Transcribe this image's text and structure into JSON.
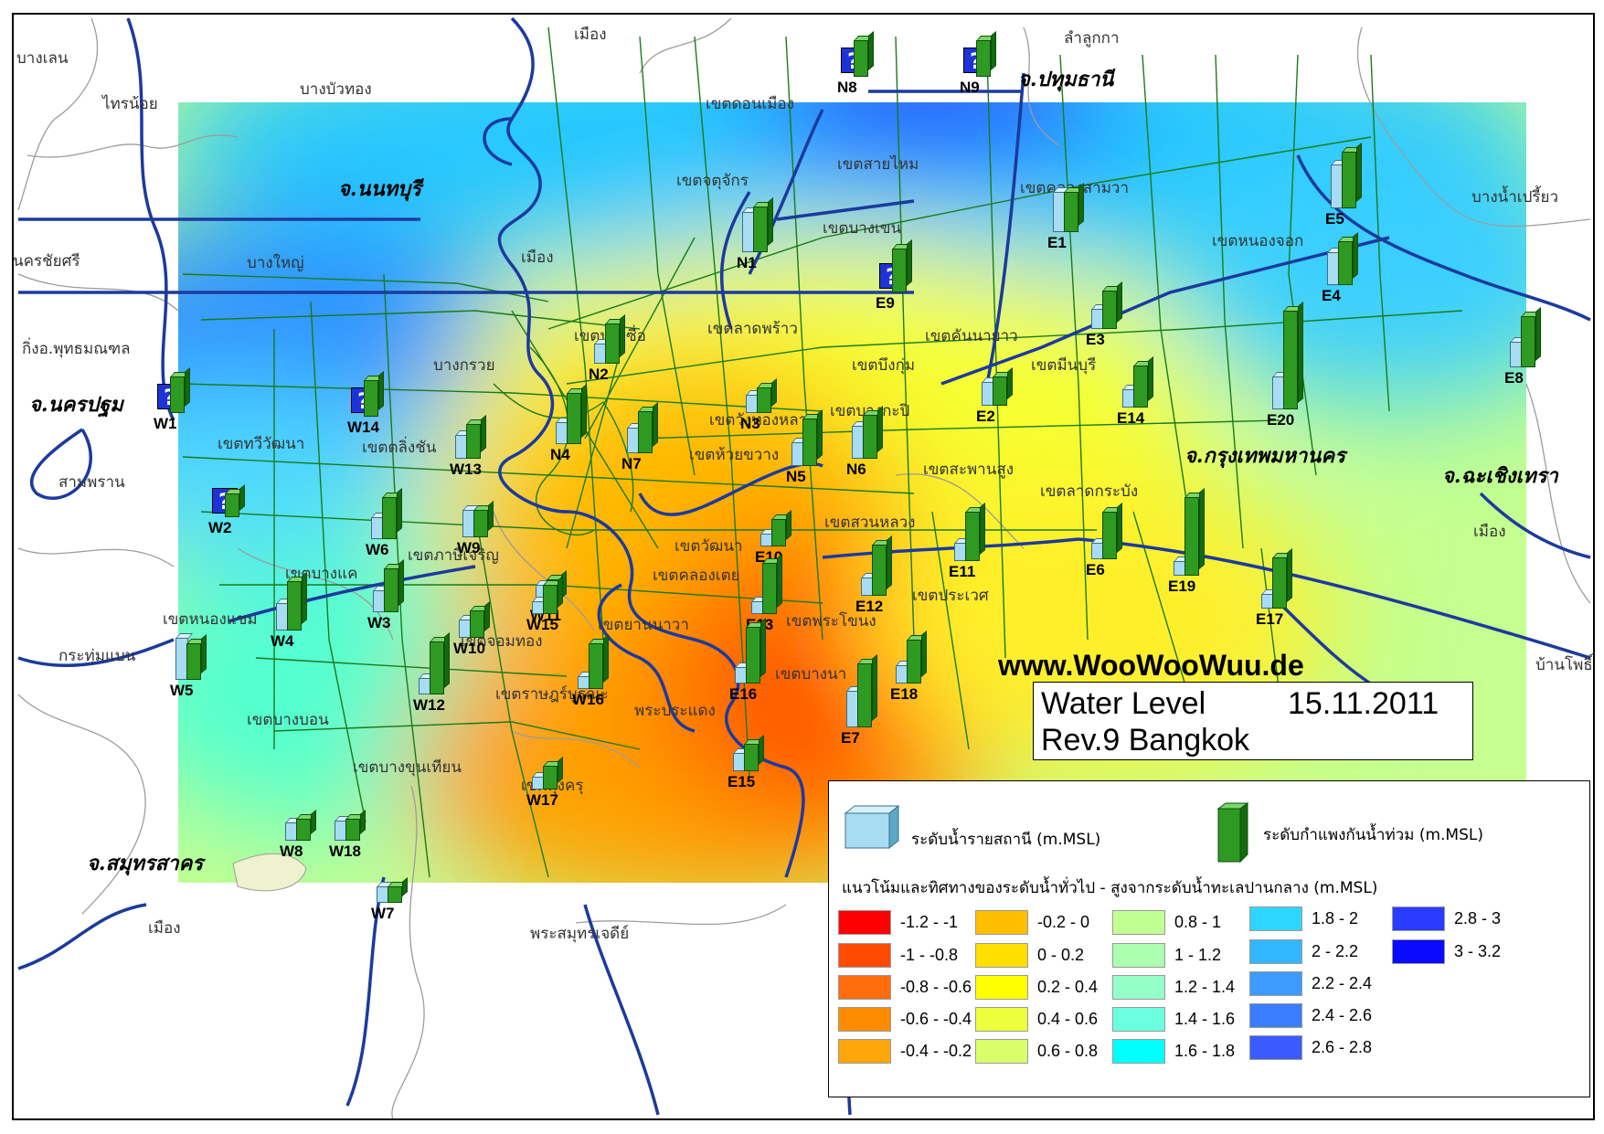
{
  "title": {
    "line1": "Water Level",
    "date": "15.11.2011",
    "line2": "Rev.9 Bangkok"
  },
  "website": "www.WooWooWuu.de",
  "provinces": [
    {
      "id": "nonthaburi",
      "label": "จ.นนทบุรี"
    },
    {
      "id": "pathum-thani",
      "label": "จ.ปทุมธานี"
    },
    {
      "id": "nakhon-pathom",
      "label": "จ.นครปฐม"
    },
    {
      "id": "bangkok",
      "label": "จ.กรุงเทพมหานคร"
    },
    {
      "id": "chachoengsao",
      "label": "จ.ฉะเชิงเทรา"
    },
    {
      "id": "samut-sakhon",
      "label": "จ.สมุทรสาคร"
    }
  ],
  "places": [
    {
      "id": "bang-len",
      "label": "บางเลน"
    },
    {
      "id": "sai-noi",
      "label": "ไทรน้อย"
    },
    {
      "id": "bang-bua-thong",
      "label": "บางบัวทอง"
    },
    {
      "id": "nakhon-chai-si",
      "label": "นครชัยศรี"
    },
    {
      "id": "bang-yai",
      "label": "บางใหญ่"
    },
    {
      "id": "phutthamonthon",
      "label": "กิ่งอ.พุทธมณฑล"
    },
    {
      "id": "bang-kruai",
      "label": "บางกรวย"
    },
    {
      "id": "sam-phran",
      "label": "สามพราน"
    },
    {
      "id": "krathum-baen",
      "label": "กระทุ่มแบน"
    },
    {
      "id": "lam-luk-ka",
      "label": "ลำลูกกา"
    },
    {
      "id": "bang-nam-priao",
      "label": "บางน้ำเปรี้ยว"
    },
    {
      "id": "ban-pho",
      "label": "บ้านโพธิ์"
    },
    {
      "id": "mueang-chachoengsao",
      "label": "เมือง"
    },
    {
      "id": "mueang-samut-sakhon",
      "label": "เมือง"
    },
    {
      "id": "phra-samut-chedi",
      "label": "พระสมุทรเจดีย์"
    },
    {
      "id": "mueang-nonthaburi",
      "label": "เมือง"
    },
    {
      "id": "mueang-pathum-thani",
      "label": "เมือง"
    },
    {
      "id": "don-mueang",
      "label": "เขตดอนเมือง"
    },
    {
      "id": "sai-mai",
      "label": "เขตสายไหม"
    },
    {
      "id": "khlong-sam-wa",
      "label": "เขตคลองสามวา"
    },
    {
      "id": "bang-khen",
      "label": "เขตบางเขน"
    },
    {
      "id": "nong-chok",
      "label": "เขตหนองจอก"
    },
    {
      "id": "khan-na-yao",
      "label": "เขตคันนายาว"
    },
    {
      "id": "bueng-kum",
      "label": "เขตบึงกุ่ม"
    },
    {
      "id": "min-buri",
      "label": "เขตมีนบุรี"
    },
    {
      "id": "saphan-sung",
      "label": "เขตสะพานสูง"
    },
    {
      "id": "lat-krabang",
      "label": "เขตลาดกระบัง"
    },
    {
      "id": "chatuchak",
      "label": "เขตจตุจักร"
    },
    {
      "id": "bang-sue",
      "label": "เขตบางซื่อ"
    },
    {
      "id": "wang-thonglang",
      "label": "เขตวังทองหลาง"
    },
    {
      "id": "bang-kapi",
      "label": "เขตบางกะปิ"
    },
    {
      "id": "suan-luang",
      "label": "เขตสวนหลวง"
    },
    {
      "id": "prawet",
      "label": "เขตประเวศ"
    },
    {
      "id": "phra-khanong",
      "label": "เขตพระโขนง"
    },
    {
      "id": "bang-na",
      "label": "เขตบางนา"
    },
    {
      "id": "taling-chan",
      "label": "เขตตลิ่งชัน"
    },
    {
      "id": "thawi-watthana",
      "label": "เขตทวีวัฒนา"
    },
    {
      "id": "bang-khae",
      "label": "เขตบางแค"
    },
    {
      "id": "nong-khaem",
      "label": "เขตหนองแขม"
    },
    {
      "id": "phasi-charoen",
      "label": "เขตภาษีเจริญ"
    },
    {
      "id": "bang-bon",
      "label": "เขตบางบอน"
    },
    {
      "id": "bang-khun-thian",
      "label": "เขตบางขุนเทียน"
    },
    {
      "id": "chom-thong",
      "label": "เขตจอมทอง"
    },
    {
      "id": "rat-burana",
      "label": "เขตราษฎร์บูรณะ"
    },
    {
      "id": "thung-khru",
      "label": "เขตทุ่งครุ"
    },
    {
      "id": "yan-nawa",
      "label": "เขตยานนาวา"
    },
    {
      "id": "khlong-toei",
      "label": "เขตคลองเตย"
    },
    {
      "id": "watthana",
      "label": "เขตวัฒนา"
    },
    {
      "id": "phra-pradaeng",
      "label": "พระประแดง"
    },
    {
      "id": "lat-phrao",
      "label": "เขตลาดพร้าว"
    },
    {
      "id": "huai-khwang",
      "label": "เขตห้วยขวาง"
    }
  ],
  "stations": [
    {
      "code": "N1"
    },
    {
      "code": "N2"
    },
    {
      "code": "N3"
    },
    {
      "code": "N4"
    },
    {
      "code": "N5"
    },
    {
      "code": "N6"
    },
    {
      "code": "N7"
    },
    {
      "code": "N8"
    },
    {
      "code": "N9"
    },
    {
      "code": "E1"
    },
    {
      "code": "E2"
    },
    {
      "code": "E3"
    },
    {
      "code": "E4"
    },
    {
      "code": "E5"
    },
    {
      "code": "E6"
    },
    {
      "code": "E7"
    },
    {
      "code": "E8"
    },
    {
      "code": "E9"
    },
    {
      "code": "E10"
    },
    {
      "code": "E11"
    },
    {
      "code": "E12"
    },
    {
      "code": "E13"
    },
    {
      "code": "E14"
    },
    {
      "code": "E15"
    },
    {
      "code": "E16"
    },
    {
      "code": "E17"
    },
    {
      "code": "E18"
    },
    {
      "code": "E19"
    },
    {
      "code": "E20"
    },
    {
      "code": "W1"
    },
    {
      "code": "W2"
    },
    {
      "code": "W3"
    },
    {
      "code": "W4"
    },
    {
      "code": "W5"
    },
    {
      "code": "W6"
    },
    {
      "code": "W7"
    },
    {
      "code": "W8"
    },
    {
      "code": "W9"
    },
    {
      "code": "W10"
    },
    {
      "code": "W11"
    },
    {
      "code": "W12"
    },
    {
      "code": "W13"
    },
    {
      "code": "W14"
    },
    {
      "code": "W15"
    },
    {
      "code": "W16"
    },
    {
      "code": "W17"
    },
    {
      "code": "W18"
    }
  ],
  "unknown_marker_glyph": "?",
  "legend": {
    "station_level": "ระดับน้ำรายสถานี (m.MSL)",
    "wall_level": "ระดับกำแพงกันน้ำท่วม (m.MSL)",
    "contour_title": "แนวโน้มและทิศทางของระดับน้ำทั่วไป - สูงจากระดับน้ำทะเลปานกลาง (m.MSL)",
    "classes": [
      {
        "range": "-1.2 - -1",
        "color": "#ff0000"
      },
      {
        "range": "-1 - -0.8",
        "color": "#ff4a00"
      },
      {
        "range": "-0.8 - -0.6",
        "color": "#ff6d0d"
      },
      {
        "range": "-0.6 - -0.4",
        "color": "#ff8c00"
      },
      {
        "range": "-0.4 - -0.2",
        "color": "#ffa60a"
      },
      {
        "range": "-0.2 - 0",
        "color": "#ffbf00"
      },
      {
        "range": "0 - 0.2",
        "color": "#ffde00"
      },
      {
        "range": "0.2 - 0.4",
        "color": "#ffff00"
      },
      {
        "range": "0.4 - 0.6",
        "color": "#ecff3d"
      },
      {
        "range": "0.6 - 0.8",
        "color": "#d8ff6a"
      },
      {
        "range": "0.8 - 1",
        "color": "#c2ff92"
      },
      {
        "range": "1 - 1.2",
        "color": "#acffaf"
      },
      {
        "range": "1.2 - 1.4",
        "color": "#94ffc8"
      },
      {
        "range": "1.4 - 1.6",
        "color": "#6cffdf"
      },
      {
        "range": "1.6 - 1.8",
        "color": "#00ffff"
      },
      {
        "range": "1.8 - 2",
        "color": "#2ed6ff"
      },
      {
        "range": "2 - 2.2",
        "color": "#32b8ff"
      },
      {
        "range": "2.2 - 2.4",
        "color": "#3d9bff"
      },
      {
        "range": "2.4 - 2.6",
        "color": "#3a7dff"
      },
      {
        "range": "2.6 - 2.8",
        "color": "#3a5cff"
      },
      {
        "range": "2.8 - 3",
        "color": "#2a3cff"
      },
      {
        "range": "3 - 3.2",
        "color": "#0a0aff"
      }
    ]
  },
  "colors": {
    "station_level": "#a7dcf3",
    "flood_wall": "#2e9a22",
    "unknown_marker": "#1e33d6",
    "rivers": "#1c3a9e",
    "roads": "#1a7a1a",
    "boundaries": "#9c9c9c"
  }
}
